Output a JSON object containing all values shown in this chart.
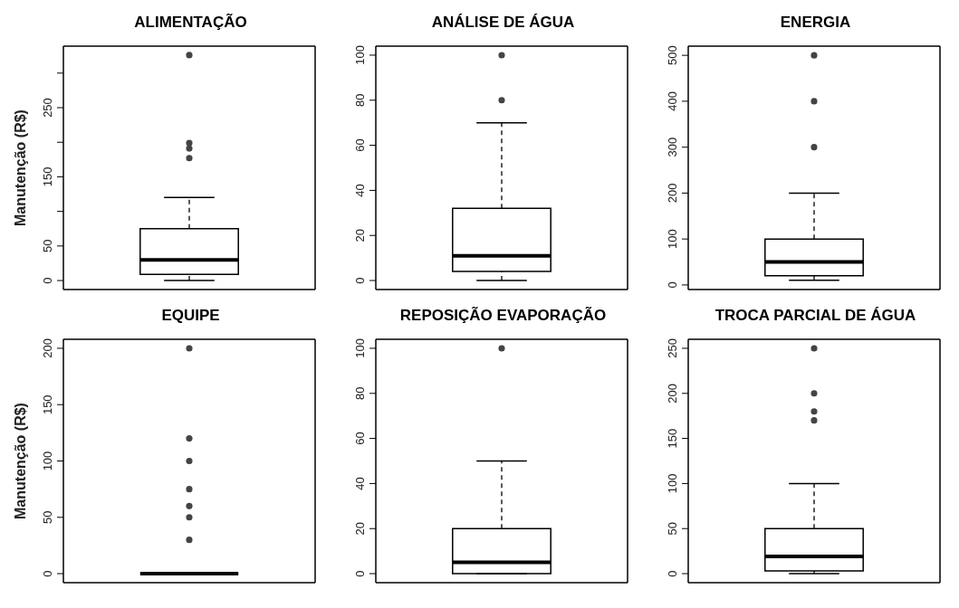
{
  "chart_data": [
    {
      "type": "box",
      "title": "ALIMENTAÇÃO",
      "ylabel": "Manutenção (R$)",
      "categories": [
        null
      ],
      "tick_labels": "y",
      "ylim": [
        -13,
        339
      ],
      "yticks": [
        0,
        50,
        {
          "value": 100,
          "label": null
        },
        150,
        {
          "value": 200,
          "label": null
        },
        250,
        {
          "value": 300,
          "label": null
        }
      ],
      "boxes": [
        {
          "low": 0,
          "q1": 9,
          "median": 30,
          "q3": 75,
          "high": 120,
          "outliers": [
            177,
            191,
            199,
            326
          ]
        }
      ]
    },
    {
      "type": "box",
      "title": "ANÁLISE DE ÁGUA",
      "categories": [
        null
      ],
      "tick_labels": "y",
      "ylim": [
        -4,
        104
      ],
      "yticks": [
        0,
        20,
        40,
        60,
        80,
        100
      ],
      "boxes": [
        {
          "low": 0,
          "q1": 4,
          "median": 11,
          "q3": 32,
          "high": 70,
          "outliers": [
            80,
            100
          ]
        }
      ]
    },
    {
      "type": "box",
      "title": "ENERGIA",
      "categories": [
        null
      ],
      "tick_labels": "y",
      "ylim": [
        -10,
        520
      ],
      "yticks": [
        0,
        100,
        200,
        300,
        400,
        500
      ],
      "boxes": [
        {
          "low": 10,
          "q1": 20,
          "median": 50,
          "q3": 100,
          "high": 200,
          "outliers": [
            300,
            400,
            500
          ]
        }
      ]
    },
    {
      "type": "box",
      "title": "EQUIPE",
      "ylabel": "Manutenção (R$)",
      "categories": [
        null
      ],
      "tick_labels": "y",
      "ylim": [
        -8,
        208
      ],
      "yticks": [
        0,
        50,
        100,
        150,
        200
      ],
      "boxes": [
        {
          "low": 0,
          "q1": 0,
          "median": 0,
          "q3": 0,
          "high": 0,
          "outliers": [
            30,
            50,
            60,
            75,
            100,
            120,
            200
          ]
        }
      ]
    },
    {
      "type": "box",
      "title": "REPOSIÇÃO EVAPORAÇÃO",
      "categories": [
        null
      ],
      "tick_labels": "y",
      "ylim": [
        -4,
        104
      ],
      "yticks": [
        0,
        20,
        40,
        60,
        80,
        100
      ],
      "boxes": [
        {
          "low": 0,
          "q1": 0,
          "median": 5,
          "q3": 20,
          "high": 50,
          "outliers": [
            100
          ]
        }
      ]
    },
    {
      "type": "box",
      "title": "TROCA PARCIAL DE ÁGUA",
      "categories": [
        null
      ],
      "tick_labels": "y",
      "ylim": [
        -10,
        260
      ],
      "yticks": [
        0,
        50,
        100,
        150,
        200,
        250
      ],
      "boxes": [
        {
          "low": 0,
          "q1": 3,
          "median": 19,
          "q3": 50,
          "high": 100,
          "outliers": [
            170,
            180,
            200,
            250
          ]
        }
      ]
    }
  ]
}
